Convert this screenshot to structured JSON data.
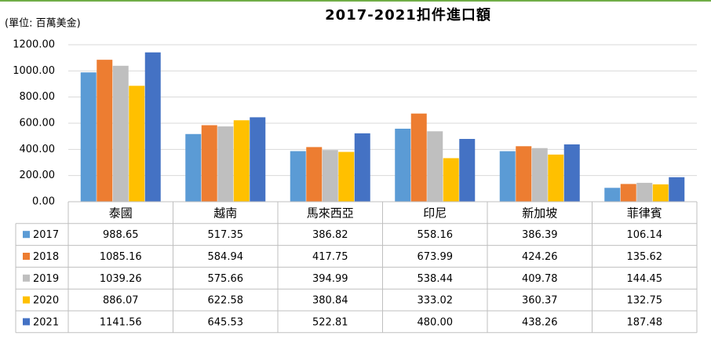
{
  "chart_data": {
    "type": "bar",
    "title": "2017-2021扣件進口額",
    "y_label": "(單位: 百萬美金)",
    "categories": [
      "泰國",
      "越南",
      "馬來西亞",
      "印尼",
      "新加坡",
      "菲律賓"
    ],
    "series": [
      {
        "name": "2017",
        "color": "#5b9bd5",
        "values": [
          988.65,
          517.35,
          386.82,
          558.16,
          386.39,
          106.14
        ],
        "value_labels": [
          "988.65",
          "517.35",
          "386.82",
          "558.16",
          "386.39",
          "106.14"
        ]
      },
      {
        "name": "2018",
        "color": "#ed7d31",
        "values": [
          1085.16,
          584.94,
          417.75,
          673.99,
          424.26,
          135.62
        ],
        "value_labels": [
          "1085.16",
          "584.94",
          "417.75",
          "673.99",
          "424.26",
          "135.62"
        ]
      },
      {
        "name": "2019",
        "color": "#bfbfbf",
        "values": [
          1039.26,
          575.66,
          394.99,
          538.44,
          409.78,
          144.45
        ],
        "value_labels": [
          "1039.26",
          "575.66",
          "394.99",
          "538.44",
          "409.78",
          "144.45"
        ]
      },
      {
        "name": "2020",
        "color": "#ffc000",
        "values": [
          886.07,
          622.58,
          380.84,
          333.02,
          360.37,
          132.75
        ],
        "value_labels": [
          "886.07",
          "622.58",
          "380.84",
          "333.02",
          "360.37",
          "132.75"
        ]
      },
      {
        "name": "2021",
        "color": "#4472c4",
        "values": [
          1141.56,
          645.53,
          522.81,
          480.0,
          438.26,
          187.48
        ],
        "value_labels": [
          "1141.56",
          "645.53",
          "522.81",
          "480.00",
          "438.26",
          "187.48"
        ]
      }
    ],
    "ylim": [
      0,
      1200
    ],
    "yticks": [
      {
        "value": 0,
        "label": "0.00"
      },
      {
        "value": 200,
        "label": "200.00"
      },
      {
        "value": 400,
        "label": "400.00"
      },
      {
        "value": 600,
        "label": "600.00"
      },
      {
        "value": 800,
        "label": "800.00"
      },
      {
        "value": 1000,
        "label": "1000.00"
      },
      {
        "value": 1200,
        "label": "1200.00"
      }
    ],
    "grid": true
  }
}
